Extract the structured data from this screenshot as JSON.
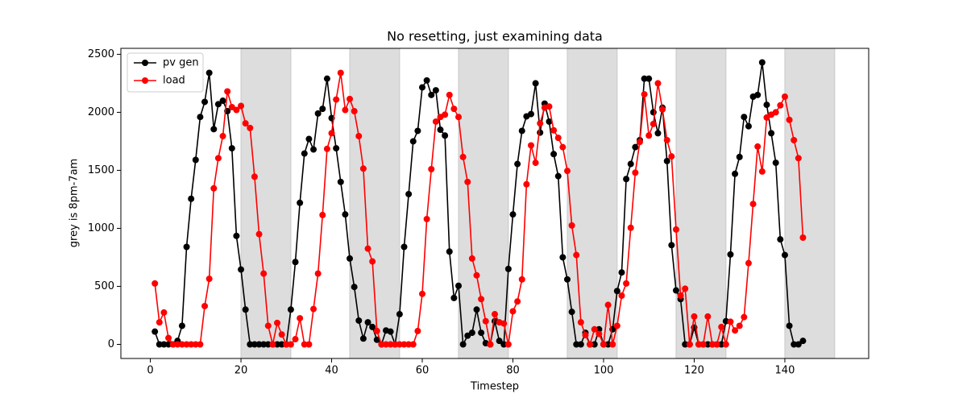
{
  "chart_data": {
    "type": "line",
    "title": "No resetting, just examining data",
    "x_label": "Timestep",
    "y_label": "grey is 8pm-7am",
    "x": [
      1,
      2,
      3,
      4,
      5,
      6,
      7,
      8,
      9,
      10,
      11,
      12,
      13,
      14,
      15,
      16,
      17,
      18,
      19,
      20,
      21,
      22,
      23,
      24,
      25,
      26,
      27,
      28,
      29,
      30,
      31,
      32,
      33,
      34,
      35,
      36,
      37,
      38,
      39,
      40,
      41,
      42,
      43,
      44,
      45,
      46,
      47,
      48,
      49,
      50,
      51,
      52,
      53,
      54,
      55,
      56,
      57,
      58,
      59,
      60,
      61,
      62,
      63,
      64,
      65,
      66,
      67,
      68,
      69,
      70,
      71,
      72,
      73,
      74,
      75,
      76,
      77,
      78,
      79,
      80,
      81,
      82,
      83,
      84,
      85,
      86,
      87,
      88,
      89,
      90,
      91,
      92,
      93,
      94,
      95,
      96,
      97,
      98,
      99,
      100,
      101,
      102,
      103,
      104,
      105,
      106,
      107,
      108,
      109,
      110,
      111,
      112,
      113,
      114,
      115,
      116,
      117,
      118,
      119,
      120,
      121,
      122,
      123,
      124,
      125,
      126,
      127,
      128,
      129,
      130,
      131,
      132,
      133,
      134,
      135,
      136,
      137,
      138,
      139,
      140,
      141,
      142,
      143,
      144
    ],
    "series": [
      {
        "name": "pv gen",
        "color": "#000000",
        "values": [
          110,
          0,
          0,
          0,
          0,
          30,
          160,
          840,
          1255,
          1590,
          1960,
          2090,
          2340,
          1855,
          2070,
          2100,
          2010,
          1690,
          935,
          645,
          300,
          0,
          0,
          0,
          0,
          0,
          0,
          0,
          0,
          0,
          300,
          710,
          1220,
          1645,
          1770,
          1680,
          1990,
          2030,
          2290,
          1950,
          1690,
          1400,
          1120,
          740,
          495,
          205,
          50,
          190,
          150,
          40,
          0,
          120,
          110,
          0,
          260,
          840,
          1295,
          1750,
          1840,
          2215,
          2275,
          2150,
          2190,
          1850,
          1800,
          800,
          400,
          505,
          0,
          75,
          100,
          300,
          100,
          10,
          0,
          200,
          30,
          0,
          650,
          1120,
          1555,
          1840,
          1965,
          1985,
          2250,
          1825,
          2075,
          1920,
          1640,
          1450,
          750,
          560,
          280,
          0,
          0,
          100,
          0,
          0,
          130,
          0,
          0,
          130,
          460,
          620,
          1425,
          1555,
          1700,
          1760,
          2290,
          2290,
          2000,
          1820,
          2040,
          1580,
          855,
          465,
          390,
          0,
          0,
          145,
          0,
          0,
          0,
          0,
          0,
          0,
          200,
          775,
          1470,
          1615,
          1960,
          1880,
          2135,
          2150,
          2430,
          2065,
          1820,
          1565,
          905,
          770,
          160,
          0,
          0,
          30
        ]
      },
      {
        "name": "load",
        "color": "#ff0000",
        "values": [
          525,
          190,
          275,
          55,
          0,
          0,
          0,
          0,
          0,
          0,
          0,
          330,
          565,
          1345,
          1605,
          1795,
          2180,
          2045,
          2020,
          2055,
          1905,
          1865,
          1445,
          950,
          610,
          160,
          0,
          185,
          85,
          0,
          0,
          45,
          225,
          0,
          0,
          305,
          610,
          1115,
          1685,
          1820,
          2110,
          2340,
          2020,
          2115,
          2010,
          1795,
          1515,
          825,
          715,
          115,
          0,
          0,
          0,
          0,
          0,
          0,
          0,
          0,
          115,
          435,
          1080,
          1510,
          1920,
          1960,
          1980,
          2150,
          2030,
          1960,
          1615,
          1400,
          740,
          595,
          390,
          200,
          0,
          260,
          190,
          180,
          0,
          285,
          370,
          560,
          1380,
          1715,
          1565,
          1905,
          2040,
          2050,
          1845,
          1780,
          1700,
          1495,
          1025,
          770,
          190,
          80,
          0,
          130,
          90,
          0,
          340,
          0,
          160,
          420,
          525,
          1005,
          1480,
          1745,
          2155,
          1800,
          1900,
          2250,
          2025,
          1760,
          1620,
          990,
          420,
          480,
          0,
          240,
          0,
          0,
          240,
          0,
          0,
          150,
          0,
          195,
          120,
          160,
          235,
          700,
          1210,
          1705,
          1490,
          1955,
          1980,
          2000,
          2060,
          2135,
          1935,
          1760,
          1605,
          920
        ]
      }
    ],
    "shaded_spans": [
      [
        20,
        31
      ],
      [
        44,
        55
      ],
      [
        68,
        79
      ],
      [
        92,
        103
      ],
      [
        116,
        127
      ],
      [
        140,
        151
      ]
    ],
    "shade_color": "#dddddd",
    "xlim": [
      -6.5,
      158.5
    ],
    "xticks": [
      0,
      20,
      40,
      60,
      80,
      100,
      120,
      140
    ],
    "ylim": [
      -121.5,
      2551.5
    ],
    "yticks": [
      0,
      500,
      1000,
      1500,
      2000,
      2500
    ],
    "legend": "upper left"
  }
}
